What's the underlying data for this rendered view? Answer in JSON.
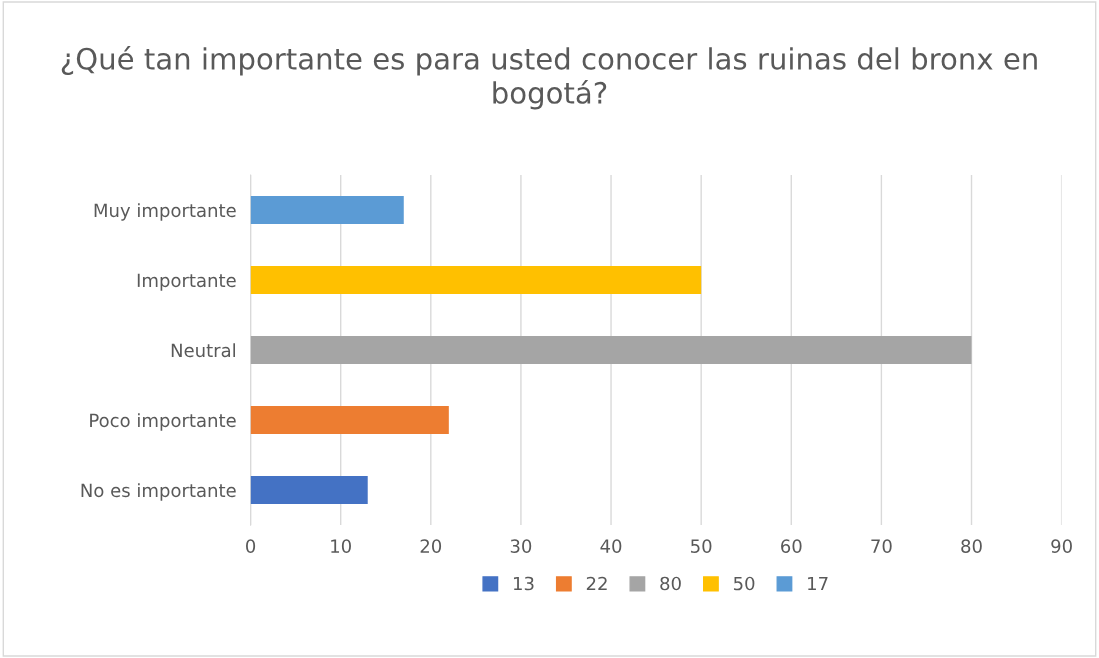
{
  "chart_data": {
    "type": "bar",
    "orientation": "horizontal",
    "title": "¿Qué tan importante es para usted conocer las ruinas del bronx en bogotá?",
    "categories": [
      "Muy importante",
      "Importante",
      "Neutral",
      "Poco importante",
      "No es importante"
    ],
    "series": [
      {
        "name": "13",
        "color": "#4472c4",
        "values": [
          null,
          null,
          null,
          null,
          13
        ]
      },
      {
        "name": "22",
        "color": "#ed7d31",
        "values": [
          null,
          null,
          null,
          22,
          null
        ]
      },
      {
        "name": "80",
        "color": "#a5a5a5",
        "values": [
          null,
          null,
          80,
          null,
          null
        ]
      },
      {
        "name": "50",
        "color": "#ffc000",
        "values": [
          null,
          50,
          null,
          null,
          null
        ]
      },
      {
        "name": "17",
        "color": "#5b9bd5",
        "values": [
          17,
          null,
          null,
          null,
          null
        ]
      }
    ],
    "xlim": [
      0,
      90
    ],
    "xticks": [
      0,
      10,
      20,
      30,
      40,
      50,
      60,
      70,
      80,
      90
    ],
    "grid": "x",
    "legend": "bottom"
  }
}
